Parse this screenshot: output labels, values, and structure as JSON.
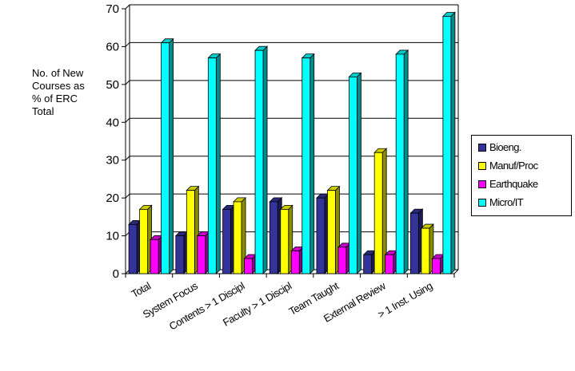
{
  "chart_data": {
    "type": "bar",
    "title": "",
    "xlabel": "",
    "ylabel": [
      "No. of New",
      "Courses as",
      "% of ERC",
      "Total"
    ],
    "ylim": [
      0,
      70
    ],
    "yticks": [
      0,
      10,
      20,
      30,
      40,
      50,
      60,
      70
    ],
    "grid": true,
    "legend_position": "right",
    "categories": [
      "Total",
      "System Focus",
      "Contents > 1 Discipl",
      "Faculty > 1 Discipl",
      "Team Taught",
      "External Review",
      "> 1 Inst. Using"
    ],
    "series": [
      {
        "name": "Bioeng.",
        "color": "#333399",
        "values": [
          13,
          10,
          17,
          19,
          20,
          5,
          16
        ]
      },
      {
        "name": "Manuf/Proc",
        "color": "#FFFF00",
        "values": [
          17,
          22,
          19,
          17,
          22,
          32,
          12
        ]
      },
      {
        "name": "Earthquake",
        "color": "#FF00FF",
        "values": [
          9,
          10,
          4,
          6,
          7,
          5,
          4
        ]
      },
      {
        "name": "Micro/IT",
        "color": "#00FFFF",
        "values": [
          61,
          57,
          59,
          57,
          52,
          58,
          68
        ]
      }
    ]
  }
}
